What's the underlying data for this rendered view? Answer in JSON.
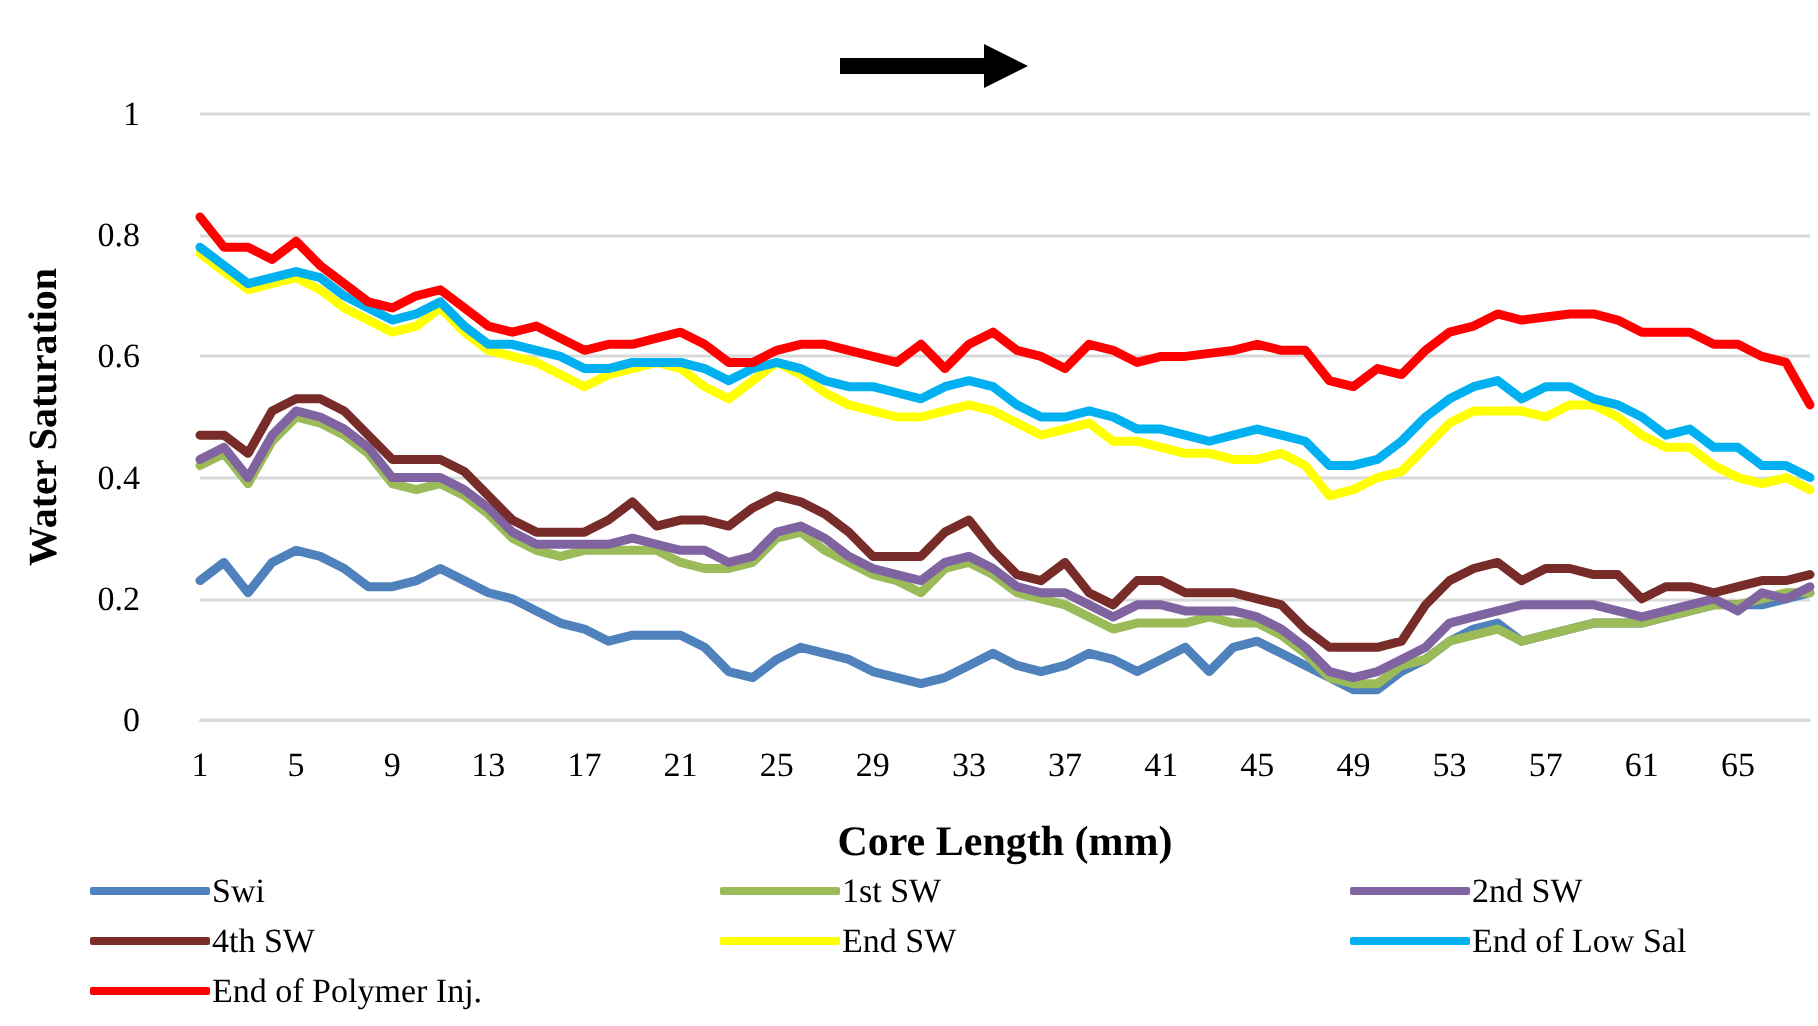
{
  "chart_data": {
    "type": "line",
    "xlabel": "Core Length (mm)",
    "ylabel": "Water Saturation",
    "categories": [
      "1",
      null,
      null,
      null,
      "5",
      null,
      null,
      null,
      "9",
      null,
      null,
      null,
      "13",
      null,
      null,
      null,
      "17",
      null,
      null,
      null,
      "21",
      null,
      null,
      null,
      "25",
      null,
      null,
      null,
      "29",
      null,
      null,
      null,
      "33",
      null,
      null,
      null,
      "37",
      null,
      null,
      null,
      "41",
      null,
      null,
      null,
      "45",
      null,
      null,
      null,
      "49",
      null,
      null,
      null,
      "53",
      null,
      null,
      null,
      "57",
      null,
      null,
      null,
      "61",
      null,
      null,
      null,
      "65",
      null,
      null,
      null
    ],
    "ylim": [
      0,
      1
    ],
    "yticks": [
      0,
      0.2,
      0.4,
      0.6,
      0.8,
      1
    ],
    "grid": "y",
    "legend": "bottom",
    "marker": "none",
    "line_style": "solid",
    "series": [
      {
        "name": "Swi",
        "color": "#4f81bd",
        "values": [
          0.23,
          0.26,
          0.21,
          0.26,
          0.28,
          0.27,
          0.25,
          0.22,
          0.22,
          0.23,
          0.25,
          0.23,
          0.21,
          0.2,
          0.18,
          0.16,
          0.15,
          0.13,
          0.14,
          0.14,
          0.14,
          0.12,
          0.08,
          0.07,
          0.1,
          0.12,
          0.11,
          0.1,
          0.08,
          0.07,
          0.06,
          0.07,
          0.09,
          0.11,
          0.09,
          0.08,
          0.09,
          0.11,
          0.1,
          0.08,
          0.1,
          0.12,
          0.08,
          0.12,
          0.13,
          0.11,
          0.09,
          0.07,
          0.05,
          0.05,
          0.08,
          0.1,
          0.13,
          0.15,
          0.16,
          0.13,
          0.14,
          0.15,
          0.16,
          0.16,
          0.16,
          0.17,
          0.18,
          0.19,
          0.19,
          0.19,
          0.2,
          0.21
        ]
      },
      {
        "name": "1st SW",
        "color": "#9bbb59",
        "values": [
          0.42,
          0.44,
          0.39,
          0.46,
          0.5,
          0.49,
          0.47,
          0.44,
          0.39,
          0.38,
          0.39,
          0.37,
          0.34,
          0.3,
          0.28,
          0.27,
          0.28,
          0.28,
          0.28,
          0.28,
          0.26,
          0.25,
          0.25,
          0.26,
          0.3,
          0.31,
          0.28,
          0.26,
          0.24,
          0.23,
          0.21,
          0.25,
          0.26,
          0.24,
          0.21,
          0.2,
          0.19,
          0.17,
          0.15,
          0.16,
          0.16,
          0.16,
          0.17,
          0.16,
          0.16,
          0.14,
          0.11,
          0.07,
          0.06,
          0.06,
          0.09,
          0.1,
          0.13,
          0.14,
          0.15,
          0.13,
          0.14,
          0.15,
          0.16,
          0.16,
          0.16,
          0.17,
          0.18,
          0.19,
          0.19,
          0.2,
          0.21,
          0.21
        ]
      },
      {
        "name": "2nd SW",
        "color": "#8064a2",
        "values": [
          0.43,
          0.45,
          0.4,
          0.47,
          0.51,
          0.5,
          0.48,
          0.45,
          0.4,
          0.4,
          0.4,
          0.38,
          0.35,
          0.31,
          0.29,
          0.29,
          0.29,
          0.29,
          0.3,
          0.29,
          0.28,
          0.28,
          0.26,
          0.27,
          0.31,
          0.32,
          0.3,
          0.27,
          0.25,
          0.24,
          0.23,
          0.26,
          0.27,
          0.25,
          0.22,
          0.21,
          0.21,
          0.19,
          0.17,
          0.19,
          0.19,
          0.18,
          0.18,
          0.18,
          0.17,
          0.15,
          0.12,
          0.08,
          0.07,
          0.08,
          0.1,
          0.12,
          0.16,
          0.17,
          0.18,
          0.19,
          0.19,
          0.19,
          0.19,
          0.18,
          0.17,
          0.18,
          0.19,
          0.2,
          0.18,
          0.21,
          0.2,
          0.22
        ]
      },
      {
        "name": "4th SW",
        "color": "#772c2a",
        "values": [
          0.47,
          0.47,
          0.44,
          0.51,
          0.53,
          0.53,
          0.51,
          0.47,
          0.43,
          0.43,
          0.43,
          0.41,
          0.37,
          0.33,
          0.31,
          0.31,
          0.31,
          0.33,
          0.36,
          0.32,
          0.33,
          0.33,
          0.32,
          0.35,
          0.37,
          0.36,
          0.34,
          0.31,
          0.27,
          0.27,
          0.27,
          0.31,
          0.33,
          0.28,
          0.24,
          0.23,
          0.26,
          0.21,
          0.19,
          0.23,
          0.23,
          0.21,
          0.21,
          0.21,
          0.2,
          0.19,
          0.15,
          0.12,
          0.12,
          0.12,
          0.13,
          0.19,
          0.23,
          0.25,
          0.26,
          0.23,
          0.25,
          0.25,
          0.24,
          0.24,
          0.2,
          0.22,
          0.22,
          0.21,
          0.22,
          0.23,
          0.23,
          0.24
        ]
      },
      {
        "name": "End SW",
        "color": "#ffff00",
        "values": [
          0.77,
          0.74,
          0.71,
          0.72,
          0.73,
          0.71,
          0.68,
          0.66,
          0.64,
          0.65,
          0.68,
          0.64,
          0.61,
          0.6,
          0.59,
          0.57,
          0.55,
          0.57,
          0.58,
          0.59,
          0.58,
          0.55,
          0.53,
          0.56,
          0.59,
          0.57,
          0.54,
          0.52,
          0.51,
          0.5,
          0.5,
          0.51,
          0.52,
          0.51,
          0.49,
          0.47,
          0.48,
          0.49,
          0.46,
          0.46,
          0.45,
          0.44,
          0.44,
          0.43,
          0.43,
          0.44,
          0.42,
          0.37,
          0.38,
          0.4,
          0.41,
          0.45,
          0.49,
          0.51,
          0.51,
          0.51,
          0.5,
          0.52,
          0.52,
          0.5,
          0.47,
          0.45,
          0.45,
          0.42,
          0.4,
          0.39,
          0.4,
          0.38
        ]
      },
      {
        "name": "End of Low Sal",
        "color": "#00b0f0",
        "values": [
          0.78,
          0.75,
          0.72,
          0.73,
          0.74,
          0.73,
          0.7,
          0.68,
          0.66,
          0.67,
          0.69,
          0.65,
          0.62,
          0.62,
          0.61,
          0.6,
          0.58,
          0.58,
          0.59,
          0.59,
          0.59,
          0.58,
          0.56,
          0.58,
          0.59,
          0.58,
          0.56,
          0.55,
          0.55,
          0.54,
          0.53,
          0.55,
          0.56,
          0.55,
          0.52,
          0.5,
          0.5,
          0.51,
          0.5,
          0.48,
          0.48,
          0.47,
          0.46,
          0.47,
          0.48,
          0.47,
          0.46,
          0.42,
          0.42,
          0.43,
          0.46,
          0.5,
          0.53,
          0.55,
          0.56,
          0.53,
          0.55,
          0.55,
          0.53,
          0.52,
          0.5,
          0.47,
          0.48,
          0.45,
          0.45,
          0.42,
          0.42,
          0.4
        ]
      },
      {
        "name": "End of Polymer Inj.",
        "color": "#ff0000",
        "values": [
          0.83,
          0.78,
          0.78,
          0.76,
          0.79,
          0.75,
          0.72,
          0.69,
          0.68,
          0.7,
          0.71,
          0.68,
          0.65,
          0.64,
          0.65,
          0.63,
          0.61,
          0.62,
          0.62,
          0.63,
          0.64,
          0.62,
          0.59,
          0.59,
          0.61,
          0.62,
          0.62,
          0.61,
          0.6,
          0.59,
          0.62,
          0.58,
          0.62,
          0.64,
          0.61,
          0.6,
          0.58,
          0.62,
          0.61,
          0.59,
          0.6,
          0.6,
          0.605,
          0.61,
          0.62,
          0.61,
          0.61,
          0.56,
          0.55,
          0.58,
          0.57,
          0.61,
          0.64,
          0.65,
          0.67,
          0.66,
          0.665,
          0.67,
          0.67,
          0.66,
          0.64,
          0.64,
          0.64,
          0.62,
          0.62,
          0.6,
          0.59,
          0.52
        ]
      }
    ]
  }
}
